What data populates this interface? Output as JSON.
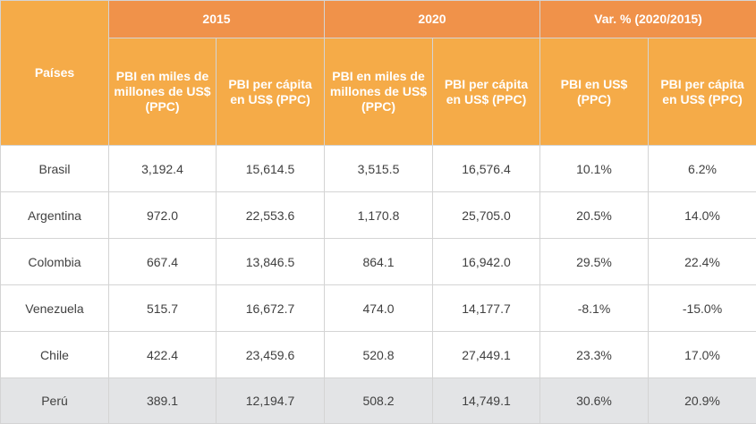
{
  "chart_data": {
    "type": "table",
    "header": {
      "countries_label": "Países",
      "groups": [
        "2015",
        "2020",
        "Var. % (2020/2015)"
      ],
      "columns": [
        "PBI en miles de millones de US$ (PPC)",
        "PBI per cápita en US$ (PPC)",
        "PBI en miles de millones de US$ (PPC)",
        "PBI per cápita en US$ (PPC)",
        "PBI en US$ (PPC)",
        "PBI per cápita en US$ (PPC)"
      ]
    },
    "rows": [
      {
        "country": "Brasil",
        "values": [
          "3,192.4",
          "15,614.5",
          "3,515.5",
          "16,576.4",
          "10.1%",
          "6.2%"
        ]
      },
      {
        "country": "Argentina",
        "values": [
          "972.0",
          "22,553.6",
          "1,170.8",
          "25,705.0",
          "20.5%",
          "14.0%"
        ]
      },
      {
        "country": "Colombia",
        "values": [
          "667.4",
          "13,846.5",
          "864.1",
          "16,942.0",
          "29.5%",
          "22.4%"
        ]
      },
      {
        "country": "Venezuela",
        "values": [
          "515.7",
          "16,672.7",
          "474.0",
          "14,177.7",
          "-8.1%",
          "-15.0%"
        ]
      },
      {
        "country": "Chile",
        "values": [
          "422.4",
          "23,459.6",
          "520.8",
          "27,449.1",
          "23.3%",
          "17.0%"
        ]
      },
      {
        "country": "Perú",
        "values": [
          "389.1",
          "12,194.7",
          "508.2",
          "14,749.1",
          "30.6%",
          "20.9%"
        ]
      }
    ]
  },
  "colors": {
    "header_top": "#f0924a",
    "header_sub": "#f5ab48",
    "header_text": "#ffffff",
    "highlight_row": "#e3e4e6",
    "border": "#d4d4d4"
  }
}
